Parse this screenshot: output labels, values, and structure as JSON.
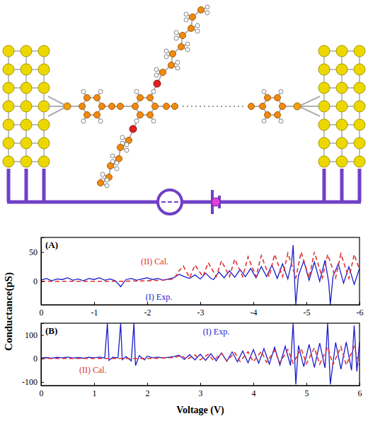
{
  "y_label": "Conductance(pS)",
  "chart_data": [
    {
      "type": "line",
      "panel": "(A)",
      "xlim": [
        0,
        -6
      ],
      "xticks": [
        0,
        -1,
        -2,
        -3,
        -4,
        -5,
        -6
      ],
      "ylim": [
        -40,
        75
      ],
      "yticks": [
        0,
        50
      ],
      "series": [
        {
          "name": "(I) Exp.",
          "color": "#1c1ccc",
          "line_style": "solid",
          "x": [
            0,
            -0.1,
            -0.2,
            -0.3,
            -0.4,
            -0.5,
            -0.6,
            -0.7,
            -0.8,
            -0.9,
            -1.0,
            -1.1,
            -1.2,
            -1.3,
            -1.4,
            -1.5,
            -1.6,
            -1.7,
            -1.8,
            -1.9,
            -2.0,
            -2.1,
            -2.2,
            -2.3,
            -2.4,
            -2.5,
            -2.6,
            -2.7,
            -2.8,
            -2.9,
            -3.0,
            -3.1,
            -3.2,
            -3.25,
            -3.35,
            -3.45,
            -3.55,
            -3.65,
            -3.75,
            -3.85,
            -3.95,
            -4.05,
            -4.15,
            -4.25,
            -4.35,
            -4.45,
            -4.55,
            -4.65,
            -4.72,
            -4.75,
            -4.78,
            -4.8,
            -4.85,
            -4.95,
            -5.05,
            -5.15,
            -5.25,
            -5.35,
            -5.42,
            -5.45,
            -5.5,
            -5.6,
            -5.7,
            -5.8,
            -5.9,
            -6.0
          ],
          "values": [
            2,
            5,
            1,
            4,
            3,
            6,
            2,
            4,
            1,
            5,
            3,
            6,
            2,
            4,
            1,
            -9,
            3,
            5,
            2,
            4,
            6,
            3,
            5,
            2,
            4,
            6,
            12,
            8,
            5,
            11,
            4,
            14,
            5,
            3,
            16,
            6,
            18,
            7,
            20,
            8,
            22,
            6,
            25,
            8,
            28,
            5,
            30,
            4,
            32,
            62,
            -5,
            -40,
            10,
            35,
            2,
            33,
            0,
            36,
            -2,
            -40,
            8,
            30,
            -3,
            25,
            -5,
            22
          ]
        },
        {
          "name": "(II) Cal.",
          "color": "#e03030",
          "line_style": "dashed",
          "x": [
            0,
            -0.5,
            -1,
            -1.5,
            -2,
            -2.3,
            -2.5,
            -2.6,
            -2.68,
            -2.8,
            -2.9,
            -3.05,
            -3.15,
            -3.3,
            -3.4,
            -3.55,
            -3.65,
            -3.8,
            -3.9,
            -4.05,
            -4.15,
            -4.3,
            -4.4,
            -4.55,
            -4.65,
            -4.8,
            -4.9,
            -5.05,
            -5.15,
            -5.3,
            -5.4,
            -5.55,
            -5.65,
            -5.8,
            -5.9,
            -6.0
          ],
          "values": [
            0,
            0,
            0,
            0,
            1,
            2,
            4,
            18,
            26,
            6,
            28,
            8,
            32,
            8,
            35,
            8,
            38,
            8,
            42,
            8,
            44,
            8,
            46,
            8,
            48,
            6,
            50,
            6,
            50,
            6,
            46,
            6,
            47,
            5,
            46,
            20
          ]
        }
      ]
    },
    {
      "type": "line",
      "panel": "(B)",
      "x_label": "Voltage (V)",
      "xlim": [
        0,
        6
      ],
      "xticks": [
        0,
        1,
        2,
        3,
        4,
        5,
        6
      ],
      "ylim": [
        -115,
        150
      ],
      "yticks": [
        -100,
        0,
        100
      ],
      "series": [
        {
          "name": "(I) Exp.",
          "color": "#1c1ccc",
          "line_style": "solid",
          "x": [
            0,
            0.1,
            0.2,
            0.3,
            0.4,
            0.5,
            0.6,
            0.7,
            0.8,
            0.9,
            1.0,
            1.1,
            1.2,
            1.25,
            1.28,
            1.35,
            1.45,
            1.5,
            1.53,
            1.6,
            1.7,
            1.75,
            1.78,
            1.85,
            1.95,
            2.0,
            2.1,
            2.2,
            2.3,
            2.4,
            2.5,
            2.6,
            2.7,
            2.8,
            2.9,
            3.0,
            3.1,
            3.2,
            3.3,
            3.4,
            3.5,
            3.6,
            3.7,
            3.8,
            3.9,
            4.0,
            4.1,
            4.2,
            4.3,
            4.4,
            4.5,
            4.6,
            4.7,
            4.75,
            4.8,
            4.85,
            4.95,
            5.05,
            5.15,
            5.25,
            5.35,
            5.4,
            5.45,
            5.55,
            5.65,
            5.75,
            5.85,
            5.9,
            5.95,
            6.0
          ],
          "values": [
            2,
            4,
            1,
            5,
            3,
            6,
            2,
            4,
            1,
            5,
            3,
            6,
            2,
            150,
            -8,
            5,
            3,
            150,
            -5,
            8,
            -10,
            150,
            -30,
            12,
            -6,
            10,
            3,
            6,
            2,
            5,
            8,
            14,
            -4,
            16,
            -6,
            18,
            -8,
            20,
            -10,
            24,
            -12,
            28,
            -14,
            32,
            -18,
            38,
            -20,
            42,
            -24,
            48,
            -28,
            52,
            -30,
            150,
            -110,
            55,
            -35,
            60,
            -38,
            65,
            -40,
            150,
            -110,
            68,
            -45,
            70,
            -50,
            140,
            -55,
            70
          ]
        },
        {
          "name": "(II) Cal.",
          "color": "#e03030",
          "line_style": "dashed",
          "x": [
            0,
            0.5,
            1,
            1.5,
            2,
            2.3,
            2.5,
            2.65,
            2.75,
            2.9,
            3.0,
            3.15,
            3.25,
            3.4,
            3.5,
            3.65,
            3.75,
            3.9,
            4.0,
            4.15,
            4.25,
            4.4,
            4.5,
            4.65,
            4.75,
            4.9,
            5.0,
            5.15,
            5.25,
            5.4,
            5.5,
            5.65,
            5.75,
            5.9,
            6.0
          ],
          "values": [
            0,
            0,
            0,
            0,
            0,
            2,
            4,
            12,
            -4,
            15,
            -6,
            18,
            -8,
            22,
            -10,
            25,
            -12,
            28,
            -14,
            30,
            -16,
            34,
            -18,
            38,
            -20,
            42,
            -22,
            45,
            -24,
            48,
            -26,
            50,
            -28,
            50,
            -30
          ]
        }
      ]
    }
  ]
}
